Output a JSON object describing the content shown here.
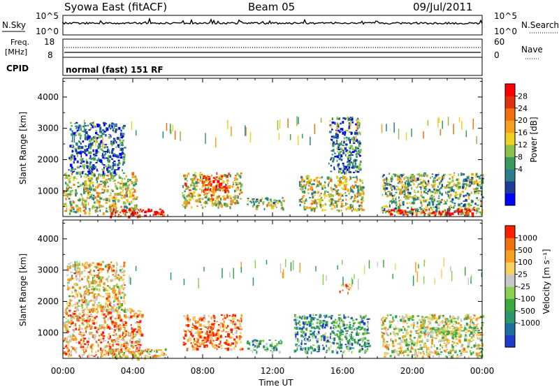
{
  "header": {
    "station": "Syowa East (fitACF)",
    "beam": "Beam 05",
    "date": "09/Jul/2011"
  },
  "panels": {
    "nsky": {
      "label": "N.Sky",
      "ytop": "10^5",
      "ybot": "10^0",
      "right_label": "N.Search",
      "rtop": "10^5",
      "rbot": "10^0"
    },
    "freq": {
      "label": "Freq.",
      "unit": "[MHz]",
      "ytop": "18",
      "ybot": "8",
      "right_label": "Nave",
      "rtop": "60",
      "rbot": "0"
    },
    "cpid": {
      "label": "CPID",
      "value": "normal (fast) 151 RF"
    }
  },
  "chart_data": {
    "type": "heatmap",
    "xlabel": "Time UT",
    "x_ticks": [
      "00:00",
      "04:00",
      "08:00",
      "12:00",
      "16:00",
      "20:00",
      "00:00"
    ],
    "xlim_hours": [
      0,
      24
    ],
    "ylabel": "Slant Range [km]",
    "y_ticks": [
      1000,
      2000,
      3000,
      4000
    ],
    "ylim_km": [
      180,
      4600
    ],
    "panels": [
      {
        "name": "power",
        "colorbar_label": "Power [dB]",
        "colorbar_ticks": [
          "28",
          "24",
          "20",
          "16",
          "12",
          "8",
          "4"
        ],
        "colorbar_colors": [
          "#0000ff",
          "#1e3c9a",
          "#2a7f8a",
          "#3c9a5a",
          "#8cc04a",
          "#f0d020",
          "#f7a020",
          "#f07010",
          "#e03010",
          "#ff0000"
        ],
        "clusters": [
          {
            "t0": 0.0,
            "t1": 4.2,
            "r0": 300,
            "r1": 1600,
            "level": 0.5
          },
          {
            "t0": 0.3,
            "t1": 3.5,
            "r0": 1600,
            "r1": 3200,
            "level": 0.2
          },
          {
            "t0": 2.6,
            "t1": 5.8,
            "r0": 200,
            "r1": 450,
            "level": 0.95
          },
          {
            "t0": 6.8,
            "t1": 10.2,
            "r0": 500,
            "r1": 1600,
            "level": 0.55
          },
          {
            "t0": 8.0,
            "t1": 9.5,
            "r0": 1000,
            "r1": 1500,
            "level": 0.85
          },
          {
            "t0": 10.5,
            "t1": 12.6,
            "r0": 450,
            "r1": 800,
            "level": 0.45
          },
          {
            "t0": 13.5,
            "t1": 17.2,
            "r0": 400,
            "r1": 1500,
            "level": 0.5
          },
          {
            "t0": 15.2,
            "t1": 17.0,
            "r0": 1600,
            "r1": 3400,
            "level": 0.25
          },
          {
            "t0": 18.2,
            "t1": 24.0,
            "r0": 250,
            "r1": 1600,
            "level": 0.4
          },
          {
            "t0": 18.5,
            "t1": 23.6,
            "r0": 250,
            "r1": 450,
            "level": 0.9
          }
        ]
      },
      {
        "name": "velocity",
        "colorbar_label": "Velocity [m s⁻¹]",
        "colorbar_ticks": [
          "1000",
          "500",
          "100",
          "25",
          "-25",
          "-100",
          "-500",
          "-1000"
        ],
        "colorbar_colors": [
          "#1e3cc8",
          "#1e6fa0",
          "#2a9a6a",
          "#3caa3c",
          "#8cd050",
          "#c8c8c8",
          "#f7d060",
          "#f7a020",
          "#f07010",
          "#ff2000"
        ],
        "clusters": [
          {
            "t0": 0.0,
            "t1": 4.5,
            "r0": 250,
            "r1": 1800,
            "level": 0.75
          },
          {
            "t0": 0.2,
            "t1": 3.5,
            "r0": 1700,
            "r1": 3300,
            "level": 0.65
          },
          {
            "t0": 2.5,
            "t1": 5.9,
            "r0": 200,
            "r1": 500,
            "level": 0.6
          },
          {
            "t0": 6.8,
            "t1": 10.2,
            "r0": 500,
            "r1": 1600,
            "level": 0.85
          },
          {
            "t0": 10.5,
            "t1": 12.5,
            "r0": 400,
            "r1": 800,
            "level": 0.35
          },
          {
            "t0": 13.2,
            "t1": 17.5,
            "r0": 400,
            "r1": 1600,
            "level": 0.3
          },
          {
            "t0": 15.8,
            "t1": 16.4,
            "r0": 2300,
            "r1": 2600,
            "level": 0.8
          },
          {
            "t0": 18.2,
            "t1": 24.0,
            "r0": 250,
            "r1": 1600,
            "level": 0.55
          },
          {
            "t0": 20.0,
            "t1": 23.8,
            "r0": 1000,
            "r1": 1200,
            "level": 0.5
          }
        ]
      }
    ]
  }
}
